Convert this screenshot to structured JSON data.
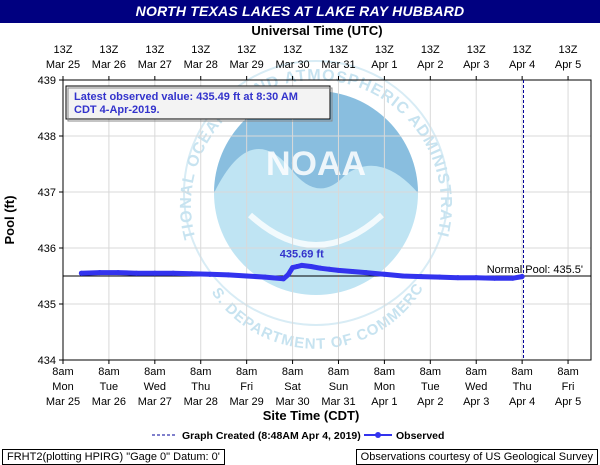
{
  "title": "NORTH TEXAS LAKES AT LAKE RAY HUBBARD",
  "top_axis_title": "Universal Time (UTC)",
  "bottom_axis_title": "Site Time (CDT)",
  "y_axis_title": "Pool (ft)",
  "annotation": {
    "line1": "Latest observed value: 435.49 ft at 8:30 AM",
    "line2": "CDT 4-Apr-2019."
  },
  "peak_label": "435.69 ft",
  "normal_pool_label": "Normal Pool: 435.5'",
  "legend": {
    "created": "Graph Created (8:48AM Apr 4, 2019)",
    "observed": "Observed"
  },
  "footer": {
    "left": "FRHT2(plotting HPIRG) \"Gage 0\" Datum: 0'",
    "right": "Observations courtesy of US Geological Survey"
  },
  "watermark": {
    "ring_text": "NATIONAL OCEANIC AND ATMOSPHERIC ADMINISTRATION",
    "bottom_text": "U.S. DEPARTMENT OF COMMERCE",
    "logo_text": "NOAA"
  },
  "colors": {
    "title_bg": "#000080",
    "series": "#3333ee",
    "annotation_text": "#3333cc",
    "watermark_blue": "#bfe4f3"
  },
  "chart_data": {
    "type": "line",
    "ylim": [
      434,
      439
    ],
    "y_ticks": [
      "434",
      "435",
      "436",
      "437",
      "438",
      "439"
    ],
    "x_ticks_bottom": [
      {
        "time": "8am",
        "day": "Mon",
        "date": "Mar 25"
      },
      {
        "time": "8am",
        "day": "Tue",
        "date": "Mar 26"
      },
      {
        "time": "8am",
        "day": "Wed",
        "date": "Mar 27"
      },
      {
        "time": "8am",
        "day": "Thu",
        "date": "Mar 28"
      },
      {
        "time": "8am",
        "day": "Fri",
        "date": "Mar 29"
      },
      {
        "time": "8am",
        "day": "Sat",
        "date": "Mar 30"
      },
      {
        "time": "8am",
        "day": "Sun",
        "date": "Mar 31"
      },
      {
        "time": "8am",
        "day": "Mon",
        "date": "Apr 1"
      },
      {
        "time": "8am",
        "day": "Tue",
        "date": "Apr 2"
      },
      {
        "time": "8am",
        "day": "Wed",
        "date": "Apr 3"
      },
      {
        "time": "8am",
        "day": "Thu",
        "date": "Apr 4"
      },
      {
        "time": "8am",
        "day": "Fri",
        "date": "Apr 5"
      }
    ],
    "x_ticks_top": [
      {
        "time": "13Z",
        "date": "Mar 25"
      },
      {
        "time": "13Z",
        "date": "Mar 26"
      },
      {
        "time": "13Z",
        "date": "Mar 27"
      },
      {
        "time": "13Z",
        "date": "Mar 28"
      },
      {
        "time": "13Z",
        "date": "Mar 29"
      },
      {
        "time": "13Z",
        "date": "Mar 30"
      },
      {
        "time": "13Z",
        "date": "Mar 31"
      },
      {
        "time": "13Z",
        "date": "Apr 1"
      },
      {
        "time": "13Z",
        "date": "Apr 2"
      },
      {
        "time": "13Z",
        "date": "Apr 3"
      },
      {
        "time": "13Z",
        "date": "Apr 4"
      },
      {
        "time": "13Z",
        "date": "Apr 5"
      }
    ],
    "normal_pool": 435.5,
    "graph_created_day": 10.03,
    "peak": {
      "day": 5.2,
      "value": 435.69
    },
    "series": [
      {
        "name": "Observed",
        "days": [
          0.4,
          0.8,
          1.2,
          1.6,
          2.0,
          2.4,
          2.8,
          3.2,
          3.6,
          4.0,
          4.4,
          4.8,
          4.9,
          5.0,
          5.1,
          5.2,
          5.4,
          5.6,
          5.8,
          6.0,
          6.3,
          6.6,
          7.0,
          7.4,
          7.8,
          8.2,
          8.6,
          9.0,
          9.4,
          9.8,
          10.0
        ],
        "values": [
          435.55,
          435.56,
          435.56,
          435.55,
          435.55,
          435.55,
          435.54,
          435.53,
          435.52,
          435.5,
          435.48,
          435.45,
          435.52,
          435.65,
          435.67,
          435.69,
          435.67,
          435.64,
          435.62,
          435.6,
          435.58,
          435.56,
          435.53,
          435.5,
          435.49,
          435.48,
          435.47,
          435.47,
          435.46,
          435.46,
          435.49
        ]
      }
    ]
  }
}
